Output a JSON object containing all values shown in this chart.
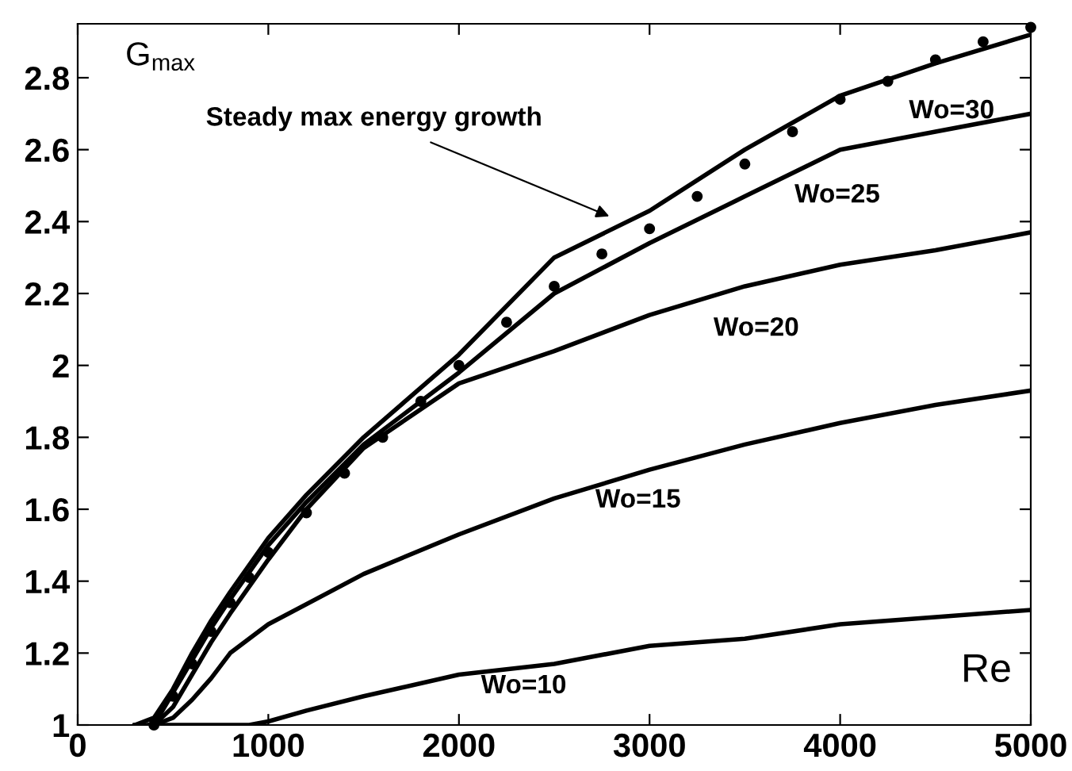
{
  "chart_data": {
    "type": "line",
    "xlabel": "Re",
    "ylabel": "G$_{max}$",
    "xlim": [
      0,
      5000
    ],
    "ylim": [
      1,
      2.95
    ],
    "xticks": [
      0,
      1000,
      2000,
      3000,
      4000,
      5000
    ],
    "yticks": [
      1,
      1.2,
      1.4,
      1.6,
      1.8,
      2,
      2.2,
      2.4,
      2.6,
      2.8
    ],
    "grid": false,
    "legend": false,
    "line_style": "solid",
    "series": [
      {
        "color": "#000000",
        "x": [
          300,
          400,
          500,
          600,
          700,
          800,
          1000,
          1200,
          1500,
          2000,
          2500,
          3000,
          3500,
          4000,
          4500,
          5000
        ],
        "values": [
          1.0,
          1.02,
          1.1,
          1.2,
          1.29,
          1.37,
          1.52,
          1.64,
          1.8,
          2.03,
          2.3,
          2.43,
          2.6,
          2.75,
          2.84,
          2.92
        ]
      },
      {
        "color": "#000000",
        "x": [
          380,
          400,
          500,
          600,
          700,
          800,
          1000,
          1200,
          1500,
          2000,
          2500,
          3000,
          3500,
          4000,
          4500,
          5000
        ],
        "values": [
          1.0,
          1.0,
          1.09,
          1.18,
          1.27,
          1.35,
          1.5,
          1.62,
          1.78,
          1.98,
          2.2,
          2.34,
          2.47,
          2.6,
          2.65,
          2.7
        ]
      },
      {
        "color": "#000000",
        "x": [
          380,
          400,
          500,
          600,
          700,
          800,
          1000,
          1200,
          1500,
          2000,
          2500,
          3000,
          3500,
          4000,
          4500,
          5000
        ],
        "values": [
          1.0,
          1.0,
          1.05,
          1.14,
          1.23,
          1.31,
          1.46,
          1.6,
          1.77,
          1.95,
          2.04,
          2.14,
          2.22,
          2.28,
          2.32,
          2.37
        ]
      },
      {
        "color": "#000000",
        "x": [
          380,
          400,
          500,
          600,
          700,
          800,
          1000,
          1500,
          2000,
          2500,
          3000,
          3500,
          4000,
          4500,
          5000
        ],
        "values": [
          1.0,
          1.0,
          1.02,
          1.07,
          1.13,
          1.2,
          1.28,
          1.42,
          1.53,
          1.63,
          1.71,
          1.78,
          1.84,
          1.89,
          1.93
        ]
      },
      {
        "color": "#000000",
        "x": [
          300,
          900,
          1000,
          1200,
          1500,
          2000,
          2500,
          3000,
          3500,
          4000,
          4500,
          5000
        ],
        "values": [
          1.0,
          1.0,
          1.01,
          1.04,
          1.08,
          1.14,
          1.17,
          1.22,
          1.24,
          1.28,
          1.3,
          1.32
        ]
      },
      {
        "type": "scatter",
        "marker": "circle",
        "color": "#000000",
        "x": [
          400,
          500,
          600,
          700,
          800,
          900,
          1000,
          1200,
          1400,
          1600,
          1800,
          2000,
          2250,
          2500,
          2750,
          3000,
          3250,
          3500,
          3750,
          4000,
          4250,
          4500,
          4750,
          5000
        ],
        "values": [
          1.0,
          1.08,
          1.17,
          1.26,
          1.34,
          1.41,
          1.48,
          1.59,
          1.7,
          1.8,
          1.9,
          2.0,
          2.12,
          2.22,
          2.31,
          2.38,
          2.47,
          2.56,
          2.65,
          2.74,
          2.79,
          2.85,
          2.9,
          2.94
        ]
      }
    ],
    "annotations": [
      {
        "text": "Steady max energy growth",
        "x": 2810,
        "y": 2.41
      },
      "Wo=30",
      "Wo=25",
      "Wo=20",
      "Wo=15",
      "Wo=10"
    ]
  }
}
